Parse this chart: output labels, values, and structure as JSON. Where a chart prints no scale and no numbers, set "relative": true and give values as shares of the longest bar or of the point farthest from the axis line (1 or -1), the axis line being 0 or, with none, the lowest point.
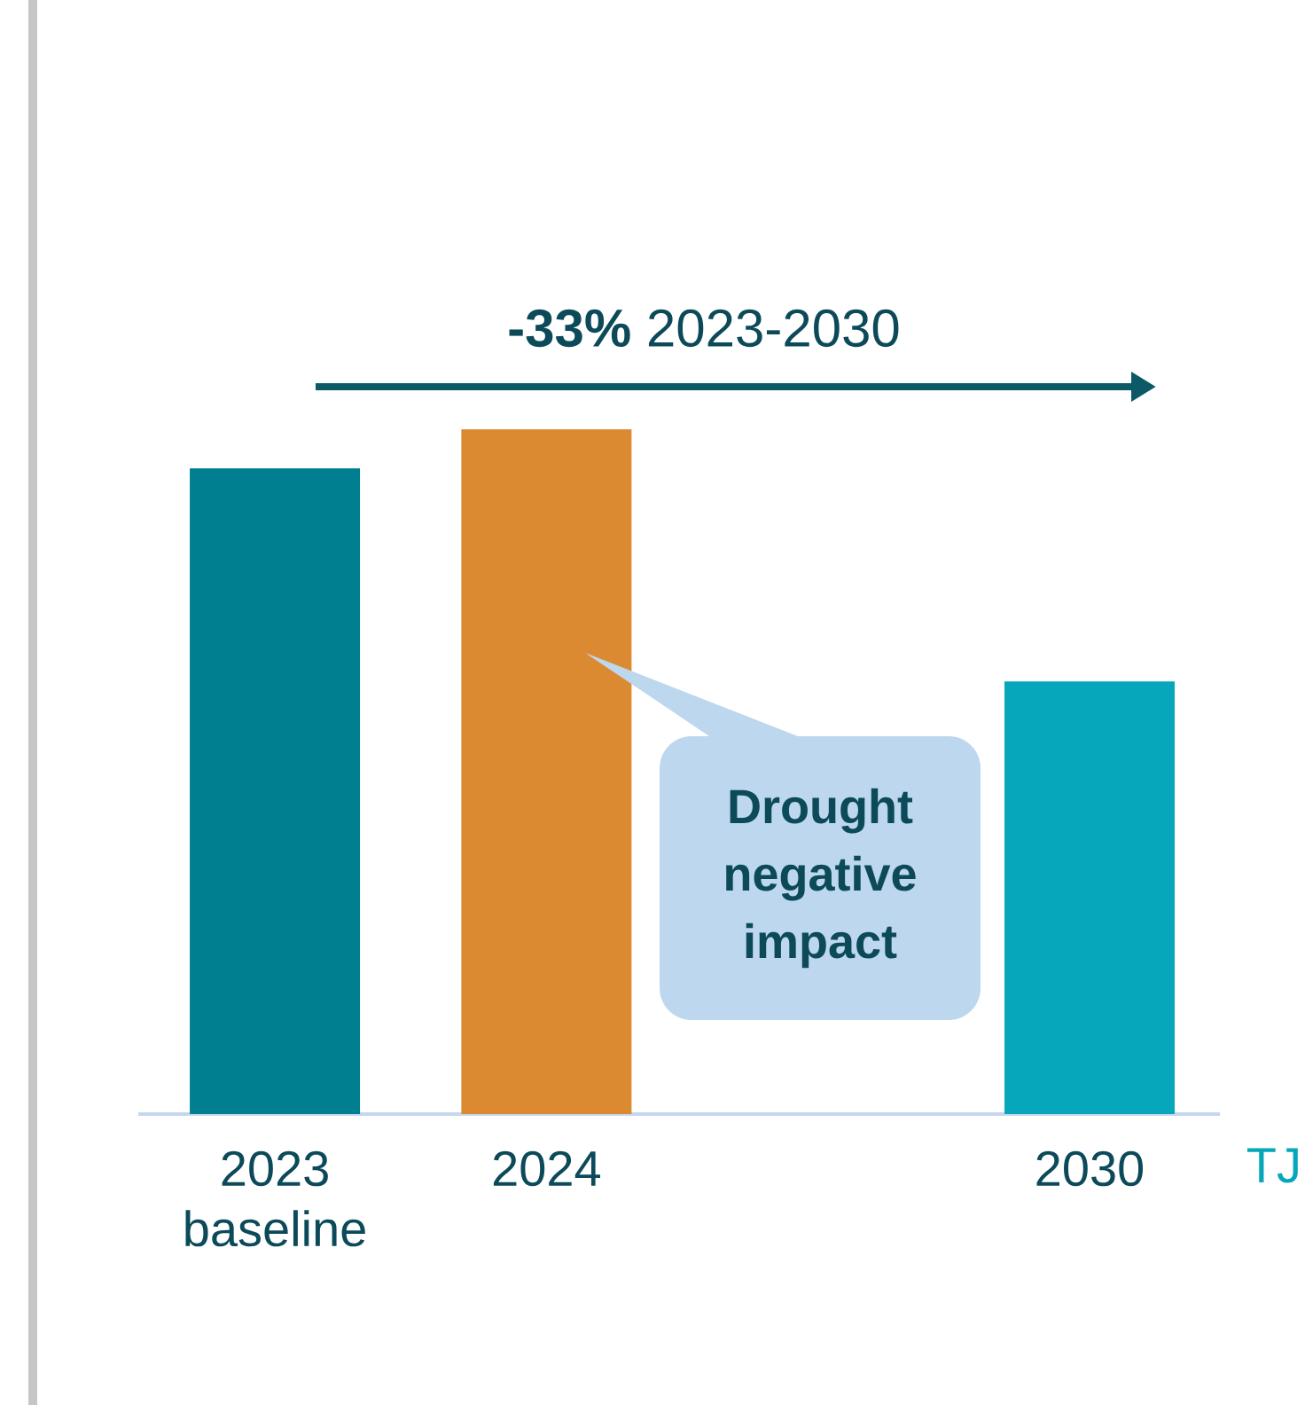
{
  "chart_data": {
    "type": "bar",
    "relative": true,
    "categories": [
      "2023 baseline",
      "2024",
      null,
      "2030"
    ],
    "values": [
      0.943,
      1,
      null,
      0.632
    ],
    "colors": [
      "#007f91",
      "#dc8a32",
      null,
      "#06a7ba"
    ],
    "ylabel": "TJ",
    "annotations": [
      "**-33%** 2023-2030",
      "Drought negative impact"
    ]
  }
}
